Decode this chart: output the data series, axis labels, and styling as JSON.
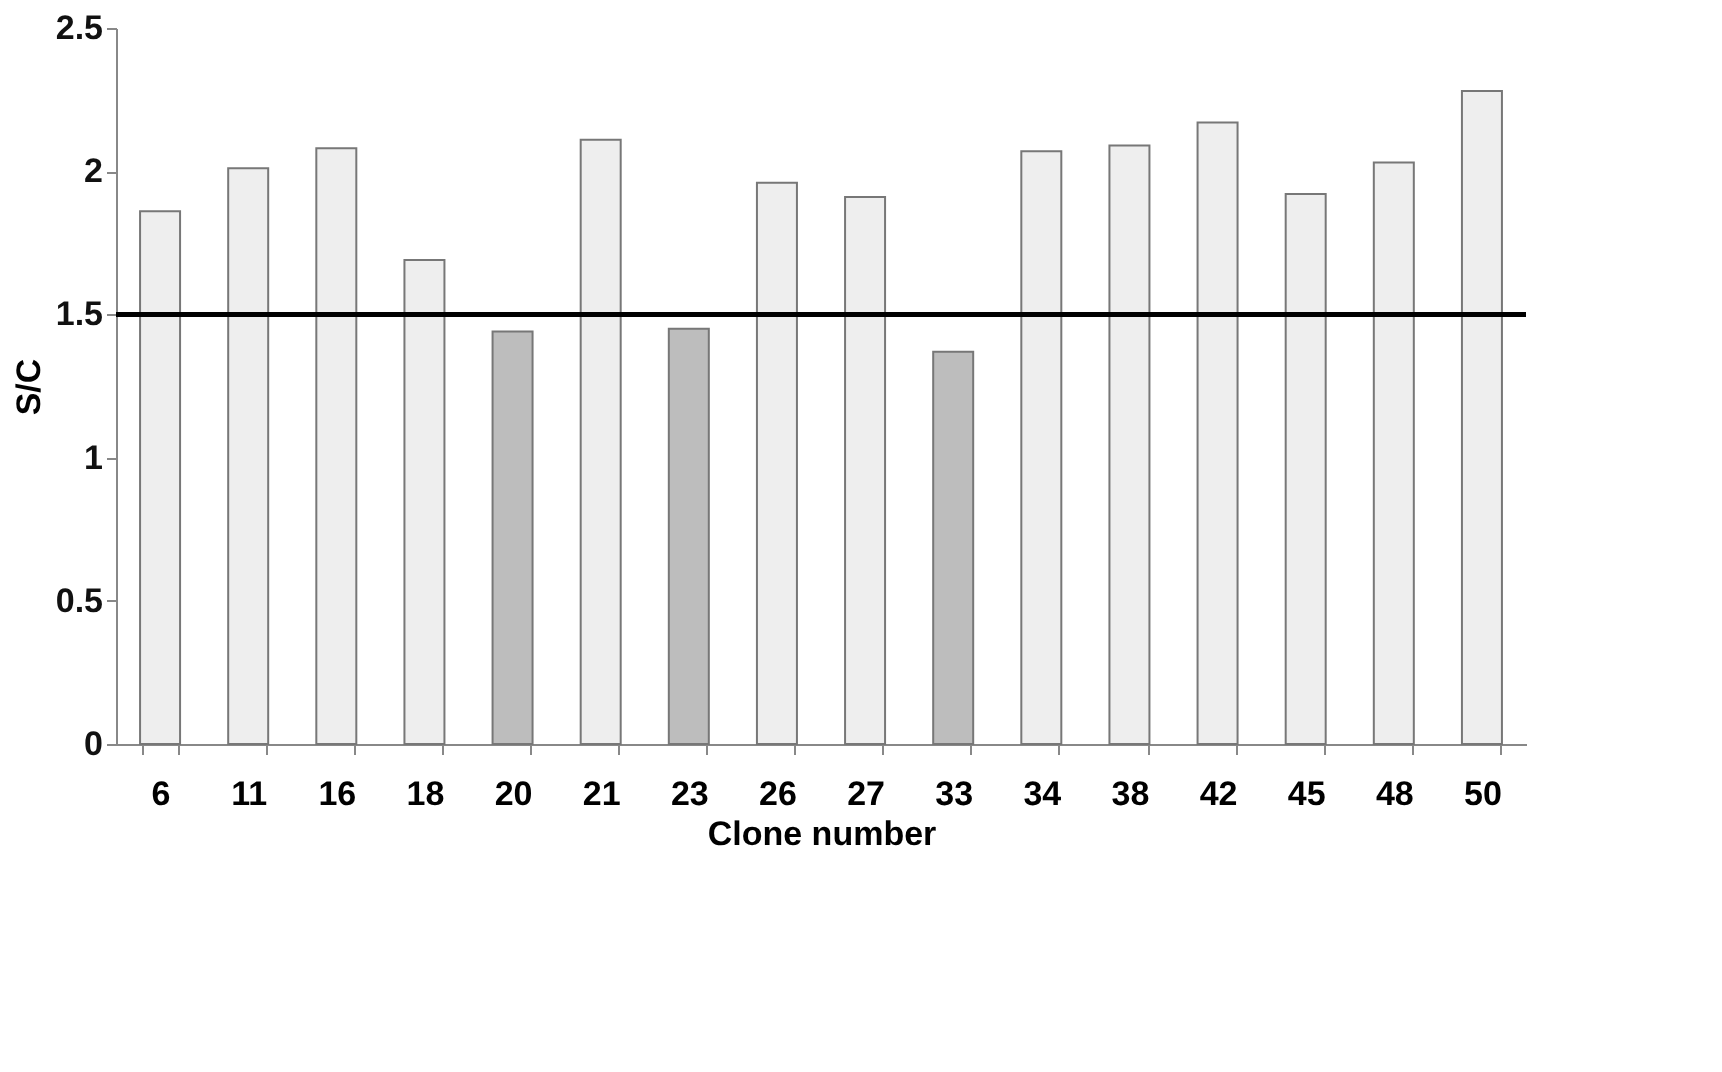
{
  "chart_data": {
    "type": "bar",
    "xlabel": "Clone number",
    "ylabel": "S/C",
    "categories": [
      "6",
      "11",
      "16",
      "18",
      "20",
      "21",
      "23",
      "26",
      "27",
      "33",
      "34",
      "38",
      "42",
      "45",
      "48",
      "50"
    ],
    "values": [
      1.86,
      2.01,
      2.08,
      1.69,
      1.44,
      2.11,
      1.45,
      1.96,
      1.91,
      1.37,
      2.07,
      2.09,
      2.17,
      1.92,
      2.03,
      2.28
    ],
    "colors": [
      "#eeeeee",
      "#eeeeee",
      "#eeeeee",
      "#eeeeee",
      "#bdbdbd",
      "#eeeeee",
      "#bdbdbd",
      "#eeeeee",
      "#eeeeee",
      "#bdbdbd",
      "#eeeeee",
      "#eeeeee",
      "#eeeeee",
      "#eeeeee",
      "#eeeeee",
      "#eeeeee"
    ],
    "ylim": [
      0,
      2.5
    ],
    "yticks": [
      0,
      0.5,
      1,
      1.5,
      2,
      2.5
    ],
    "grid": false,
    "ref_lines": [
      {
        "axis": "y",
        "value": 1.5,
        "color": "#000000",
        "line_style": "solid"
      }
    ]
  }
}
